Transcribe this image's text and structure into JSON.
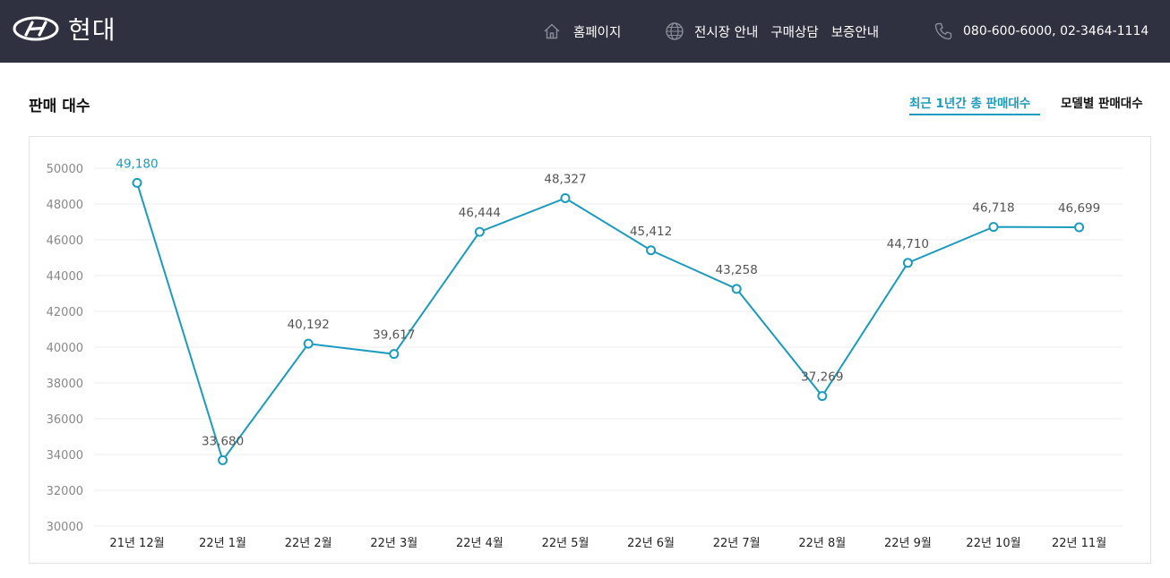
{
  "header": {
    "brand": "현대",
    "nav": {
      "home": "홈페이지",
      "showroom": "전시장 안내",
      "purchase": "구매상담",
      "warranty": "보증안내",
      "phone": "080-600-6000, 02-3464-1114"
    },
    "icons": {
      "logo": "hyundai-logo",
      "home": "home-icon",
      "globe": "globe-icon",
      "phone": "phone-icon"
    },
    "bg_color": "#2f3140"
  },
  "section": {
    "title": "판매 대수",
    "tabs": [
      {
        "label": "최근 1년간 총 판매대수",
        "active": true
      },
      {
        "label": "모델별 판매대수",
        "active": false
      }
    ],
    "accent": "#1b9bbd"
  },
  "chart_data": {
    "type": "line",
    "title": "",
    "xlabel": "",
    "ylabel": "",
    "categories": [
      "21년 12월",
      "22년 1월",
      "22년 2월",
      "22년 3월",
      "22년 4월",
      "22년 5월",
      "22년 6월",
      "22년 7월",
      "22년 8월",
      "22년 9월",
      "22년 10월",
      "22년 11월"
    ],
    "values": [
      49180,
      33680,
      40192,
      39617,
      46444,
      48327,
      45412,
      43258,
      37269,
      44710,
      46718,
      46699
    ],
    "value_labels": [
      "49,180",
      "33,680",
      "40,192",
      "39,617",
      "46,444",
      "48,327",
      "45,412",
      "43,258",
      "37,269",
      "44,710",
      "46,718",
      "46,699"
    ],
    "ylim": [
      30000,
      50000
    ],
    "yticks": [
      "30000",
      "32000",
      "34000",
      "36000",
      "38000",
      "40000",
      "42000",
      "44000",
      "46000",
      "48000",
      "50000"
    ],
    "grid": true,
    "line_color": "#1b9bbd",
    "highlight_label_color": "#1b9bbd"
  }
}
